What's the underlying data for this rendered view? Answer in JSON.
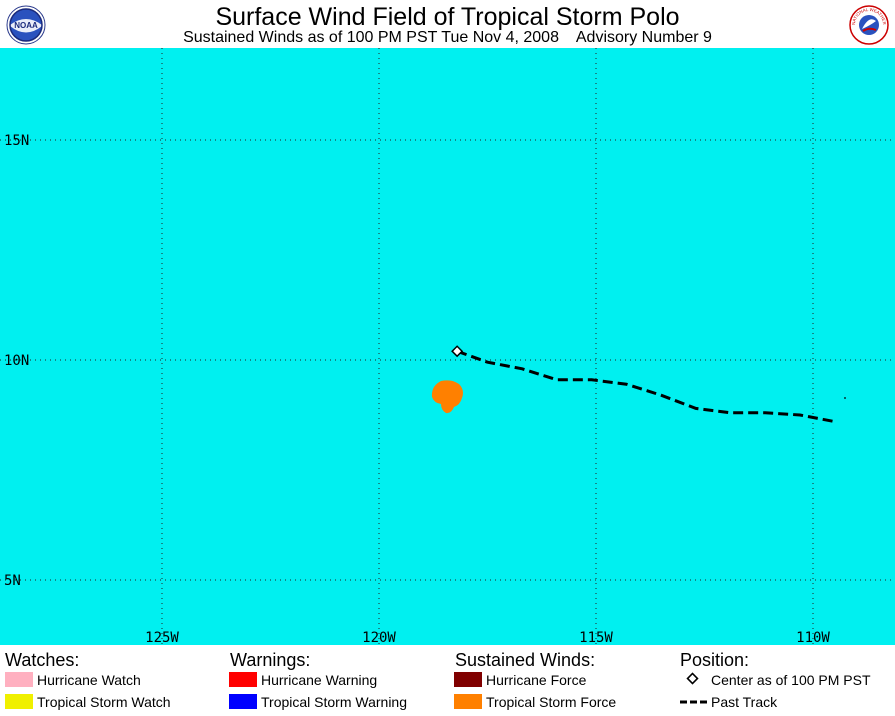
{
  "header": {
    "title": "Surface Wind Field of Tropical Storm Polo",
    "subtitle": "Sustained Winds as of 100 PM PST Tue Nov 4, 2008    Advisory Number 9",
    "logo_left": "NOAA",
    "logo_right": "NATIONAL WEATHER SERVICE"
  },
  "map": {
    "ocean_color": "#00f0f0",
    "grid_color": "#222222",
    "lat_labels": [
      "15N",
      "10N",
      "5N"
    ],
    "lon_labels": [
      "125W",
      "120W",
      "115W",
      "110W"
    ],
    "track_color": "#000000",
    "wind_field_color": "#ff8000",
    "center_marker": "diamond-icon",
    "storm_center": {
      "lon": -118.2,
      "lat": 10.2
    },
    "past_track": [
      {
        "lon": -118.2,
        "lat": 10.2
      },
      {
        "lon": -117.5,
        "lat": 9.95
      },
      {
        "lon": -116.7,
        "lat": 9.8
      },
      {
        "lon": -115.9,
        "lat": 9.55
      },
      {
        "lon": -115.1,
        "lat": 9.55
      },
      {
        "lon": -114.3,
        "lat": 9.45
      },
      {
        "lon": -113.5,
        "lat": 9.2
      },
      {
        "lon": -112.7,
        "lat": 8.9
      },
      {
        "lon": -111.9,
        "lat": 8.8
      },
      {
        "lon": -111.1,
        "lat": 8.8
      },
      {
        "lon": -110.3,
        "lat": 8.75
      },
      {
        "lon": -109.5,
        "lat": 8.6
      }
    ]
  },
  "legend": {
    "watches": {
      "heading": "Watches:",
      "items": [
        {
          "label": "Hurricane Watch",
          "color": "#ffb0c0"
        },
        {
          "label": "Tropical Storm Watch",
          "color": "#f0f000"
        }
      ]
    },
    "warnings": {
      "heading": "Warnings:",
      "items": [
        {
          "label": "Hurricane Warning",
          "color": "#ff0000"
        },
        {
          "label": "Tropical Storm Warning",
          "color": "#0000ff"
        }
      ]
    },
    "winds": {
      "heading": "Sustained Winds:",
      "items": [
        {
          "label": "Hurricane Force",
          "color": "#800000"
        },
        {
          "label": "Tropical Storm Force",
          "color": "#ff8000"
        }
      ]
    },
    "position": {
      "heading": "Position:",
      "center_label": "Center as of 100 PM PST",
      "track_label": "Past Track"
    }
  }
}
